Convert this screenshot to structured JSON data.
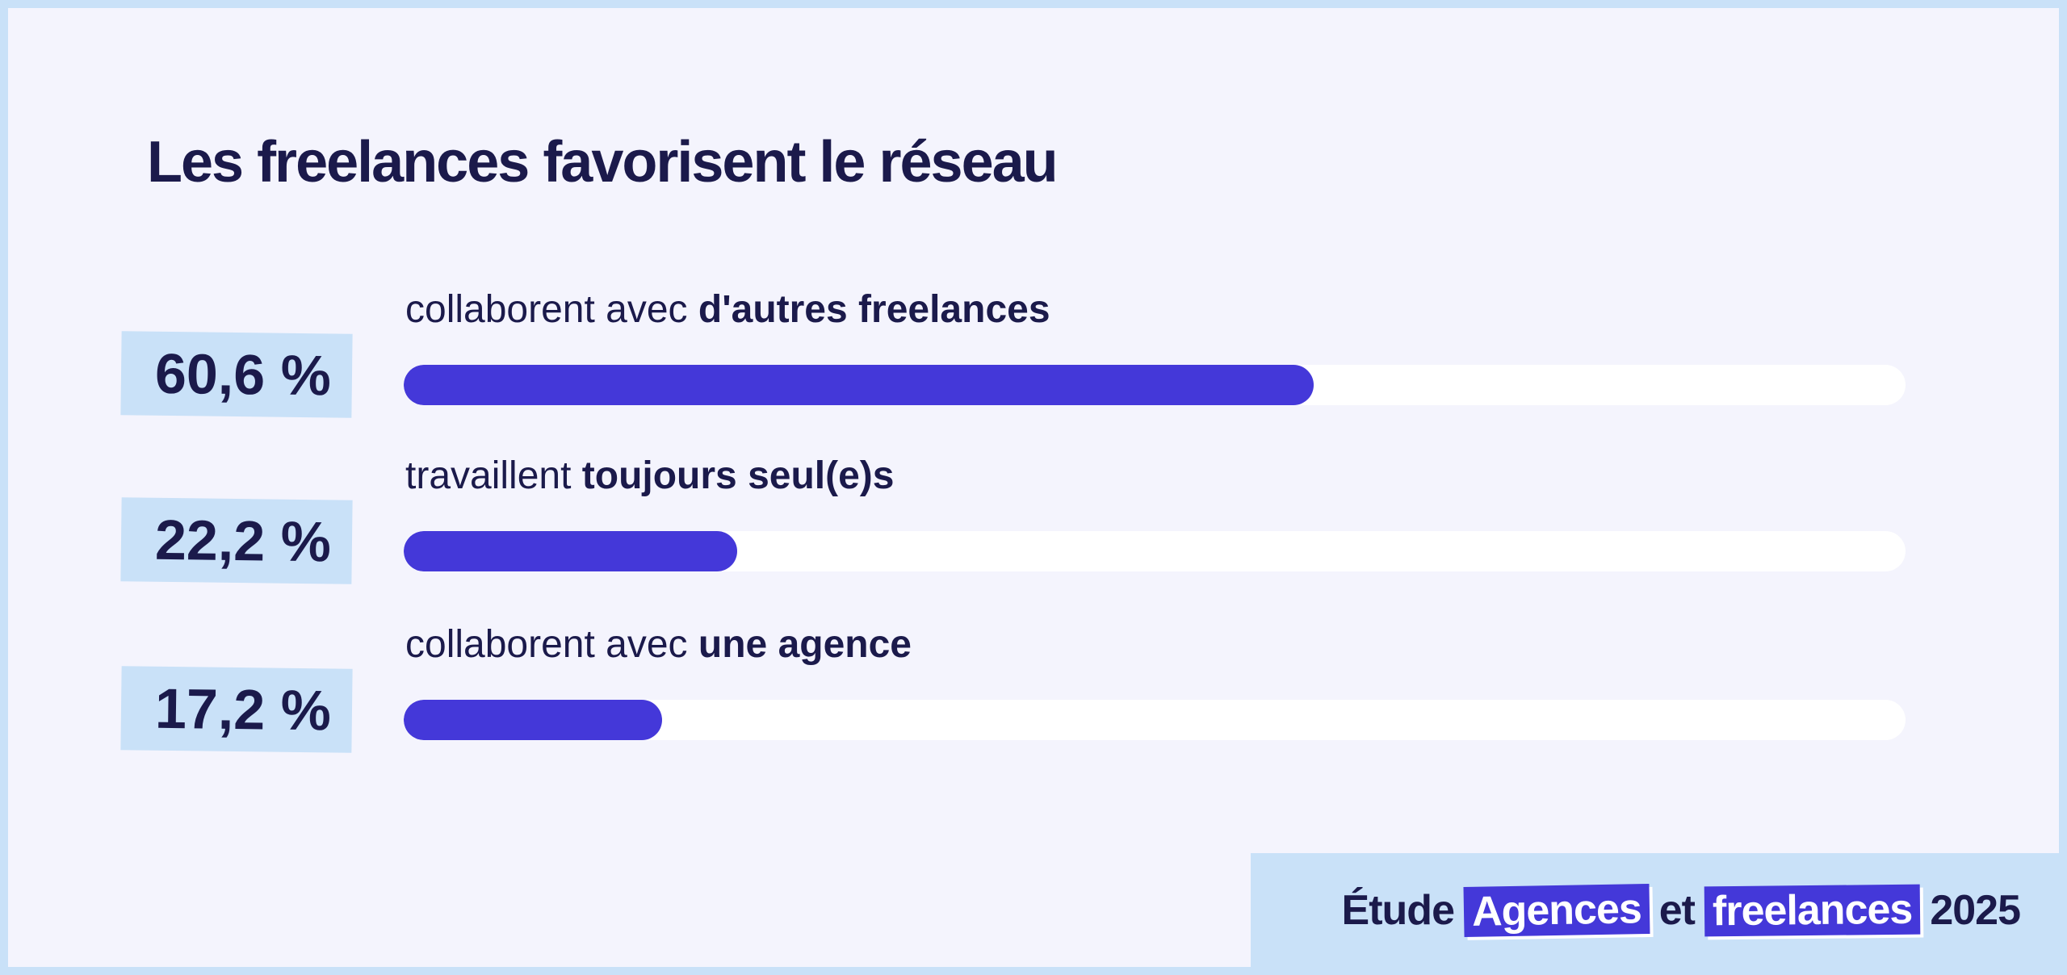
{
  "chart_data": {
    "type": "bar",
    "orientation": "horizontal",
    "title": "Les freelances favorisent le réseau",
    "max": 100,
    "bar_color": "#4438d9",
    "track_color": "#ffffff",
    "items": [
      {
        "value": 60.6,
        "value_label": "60,6 %",
        "label_regular": "collaborent avec ",
        "label_bold": "d'autres freelances"
      },
      {
        "value": 22.2,
        "value_label": "22,2 %",
        "label_regular": "travaillent ",
        "label_bold": "toujours seul(e)s"
      },
      {
        "value": 17.2,
        "value_label": "17,2 %",
        "label_regular": "collaborent avec ",
        "label_bold": "une agence"
      }
    ]
  },
  "footer": {
    "word1": "Étude",
    "highlight1": "Agences",
    "word2": "et",
    "highlight2": "freelances",
    "word3": "2025",
    "highlight_color": "#4438d9"
  }
}
